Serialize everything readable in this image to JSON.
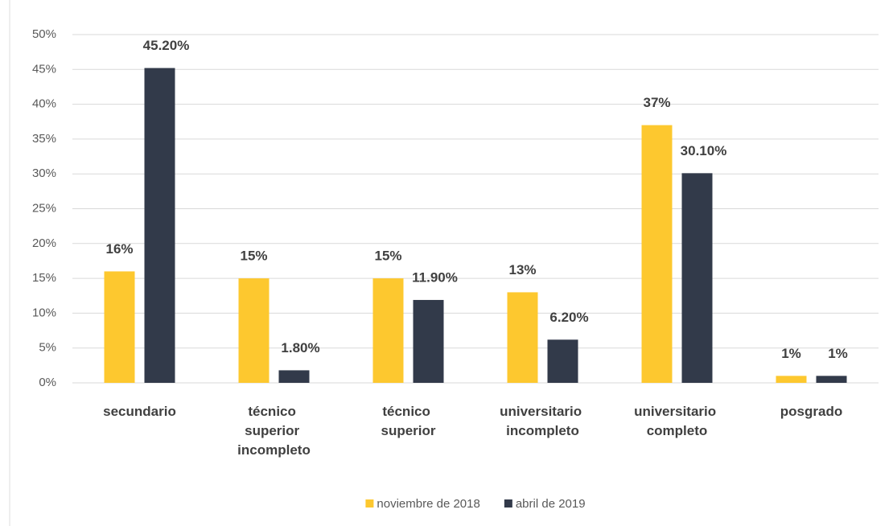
{
  "chart_data": {
    "type": "bar",
    "categories": [
      "secundario",
      "técnico superior incompleto",
      "técnico superior",
      "universitario incompleto",
      "universitario completo",
      "posgrado"
    ],
    "series": [
      {
        "name": "noviembre de 2018",
        "color": "#fdc82f",
        "values": [
          16,
          15,
          15,
          13,
          37,
          1
        ],
        "value_labels": [
          "16%",
          "15%",
          "15%",
          "13%",
          "37%",
          "1%"
        ]
      },
      {
        "name": "abril de 2019",
        "color": "#323a4a",
        "values": [
          45.2,
          1.8,
          11.9,
          6.2,
          30.1,
          1
        ],
        "value_labels": [
          "45.20%",
          "1.80%",
          "11.90%",
          "6.20%",
          "30.10%",
          "1%"
        ]
      }
    ],
    "ylim": [
      0,
      50
    ],
    "yticks": [
      {
        "value": 0,
        "label": "0%"
      },
      {
        "value": 5,
        "label": "5%"
      },
      {
        "value": 10,
        "label": "10%"
      },
      {
        "value": 15,
        "label": "15%"
      },
      {
        "value": 20,
        "label": "20%"
      },
      {
        "value": 25,
        "label": "25%"
      },
      {
        "value": 30,
        "label": "30%"
      },
      {
        "value": 35,
        "label": "35%"
      },
      {
        "value": 40,
        "label": "40%"
      },
      {
        "value": 45,
        "label": "45%"
      },
      {
        "value": 50,
        "label": "50%"
      }
    ],
    "grid": true,
    "legend": "bottom"
  }
}
